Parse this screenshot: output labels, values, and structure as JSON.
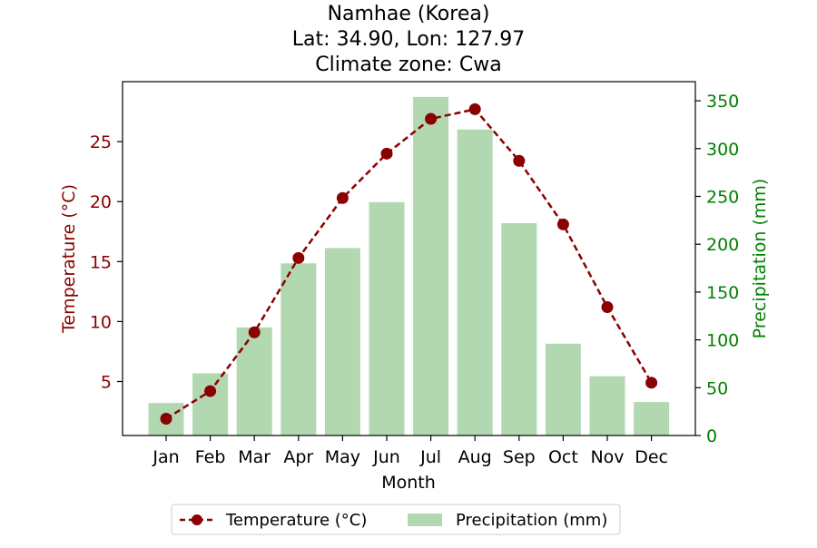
{
  "chart_data": {
    "type": "bar+line",
    "title_lines": [
      "Namhae (Korea)",
      "Lat: 34.90, Lon: 127.97",
      "Climate zone: Cwa"
    ],
    "xlabel": "Month",
    "ylabel_left": "Temperature (°C)",
    "ylabel_right": "Precipitation (mm)",
    "categories": [
      "Jan",
      "Feb",
      "Mar",
      "Apr",
      "May",
      "Jun",
      "Jul",
      "Aug",
      "Sep",
      "Oct",
      "Nov",
      "Dec"
    ],
    "temperature": {
      "name": "Temperature (°C)",
      "values": [
        1.9,
        4.2,
        9.1,
        15.3,
        20.3,
        24.0,
        26.9,
        27.7,
        23.4,
        18.1,
        11.2,
        4.9
      ],
      "color": "#8b0000",
      "ylim": [
        0.5,
        30.0
      ],
      "ticks": [
        5,
        10,
        15,
        20,
        25
      ]
    },
    "precipitation": {
      "name": "Precipitation (mm)",
      "values": [
        34,
        65,
        113,
        180,
        196,
        244,
        354,
        320,
        222,
        96,
        62,
        35
      ],
      "color": "#b2d8b2",
      "ylim": [
        0,
        370
      ],
      "ticks": [
        0,
        50,
        100,
        150,
        200,
        250,
        300,
        350
      ]
    },
    "left_axis_color": "#8b0000",
    "right_axis_color": "#008000",
    "legend_position": "bottom-center",
    "grid": false
  }
}
